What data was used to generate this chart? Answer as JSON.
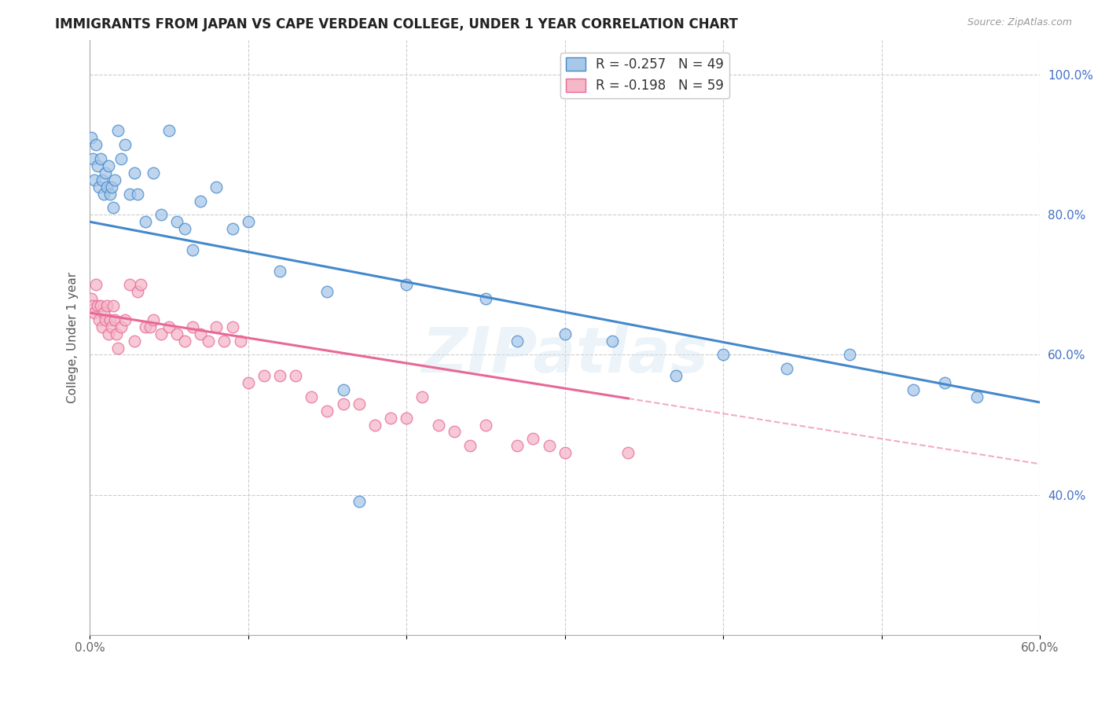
{
  "title": "IMMIGRANTS FROM JAPAN VS CAPE VERDEAN COLLEGE, UNDER 1 YEAR CORRELATION CHART",
  "source": "Source: ZipAtlas.com",
  "ylabel": "College, Under 1 year",
  "xlim": [
    0.0,
    0.6
  ],
  "ylim": [
    0.2,
    1.05
  ],
  "x_ticks": [
    0.0,
    0.1,
    0.2,
    0.3,
    0.4,
    0.5,
    0.6
  ],
  "x_tick_labels": [
    "0.0%",
    "",
    "",
    "",
    "",
    "",
    "60.0%"
  ],
  "y_ticks_right": [
    0.4,
    0.6,
    0.8,
    1.0
  ],
  "y_tick_labels_right": [
    "40.0%",
    "60.0%",
    "80.0%",
    "100.0%"
  ],
  "legend_label1": "R = -0.257   N = 49",
  "legend_label2": "R = -0.198   N = 59",
  "color_blue": "#a8c8e8",
  "color_pink": "#f4b8c8",
  "line_color_blue": "#4488cc",
  "line_color_pink": "#e86898",
  "blue_intercept": 0.79,
  "blue_slope": -0.43,
  "pink_intercept": 0.66,
  "pink_slope": -0.36,
  "pink_line_solid_end": 0.34,
  "blue_x": [
    0.001,
    0.002,
    0.003,
    0.004,
    0.005,
    0.006,
    0.007,
    0.008,
    0.009,
    0.01,
    0.011,
    0.012,
    0.013,
    0.014,
    0.015,
    0.016,
    0.018,
    0.02,
    0.022,
    0.025,
    0.028,
    0.03,
    0.035,
    0.04,
    0.045,
    0.05,
    0.055,
    0.06,
    0.065,
    0.07,
    0.08,
    0.09,
    0.1,
    0.12,
    0.15,
    0.16,
    0.17,
    0.2,
    0.25,
    0.27,
    0.3,
    0.33,
    0.37,
    0.4,
    0.44,
    0.48,
    0.52,
    0.54,
    0.56
  ],
  "blue_y": [
    0.91,
    0.88,
    0.85,
    0.9,
    0.87,
    0.84,
    0.88,
    0.85,
    0.83,
    0.86,
    0.84,
    0.87,
    0.83,
    0.84,
    0.81,
    0.85,
    0.92,
    0.88,
    0.9,
    0.83,
    0.86,
    0.83,
    0.79,
    0.86,
    0.8,
    0.92,
    0.79,
    0.78,
    0.75,
    0.82,
    0.84,
    0.78,
    0.79,
    0.72,
    0.69,
    0.55,
    0.39,
    0.7,
    0.68,
    0.62,
    0.63,
    0.62,
    0.57,
    0.6,
    0.58,
    0.6,
    0.55,
    0.56,
    0.54
  ],
  "pink_x": [
    0.001,
    0.002,
    0.003,
    0.004,
    0.005,
    0.006,
    0.007,
    0.008,
    0.009,
    0.01,
    0.011,
    0.012,
    0.013,
    0.014,
    0.015,
    0.016,
    0.017,
    0.018,
    0.02,
    0.022,
    0.025,
    0.028,
    0.03,
    0.032,
    0.035,
    0.038,
    0.04,
    0.045,
    0.05,
    0.055,
    0.06,
    0.065,
    0.07,
    0.075,
    0.08,
    0.085,
    0.09,
    0.095,
    0.1,
    0.11,
    0.12,
    0.13,
    0.14,
    0.15,
    0.16,
    0.17,
    0.18,
    0.19,
    0.2,
    0.21,
    0.22,
    0.23,
    0.24,
    0.25,
    0.27,
    0.28,
    0.29,
    0.3,
    0.34
  ],
  "pink_y": [
    0.68,
    0.67,
    0.66,
    0.7,
    0.67,
    0.65,
    0.67,
    0.64,
    0.66,
    0.65,
    0.67,
    0.63,
    0.65,
    0.64,
    0.67,
    0.65,
    0.63,
    0.61,
    0.64,
    0.65,
    0.7,
    0.62,
    0.69,
    0.7,
    0.64,
    0.64,
    0.65,
    0.63,
    0.64,
    0.63,
    0.62,
    0.64,
    0.63,
    0.62,
    0.64,
    0.62,
    0.64,
    0.62,
    0.56,
    0.57,
    0.57,
    0.57,
    0.54,
    0.52,
    0.53,
    0.53,
    0.5,
    0.51,
    0.51,
    0.54,
    0.5,
    0.49,
    0.47,
    0.5,
    0.47,
    0.48,
    0.47,
    0.46,
    0.46
  ],
  "watermark": "ZIPatlas",
  "background_color": "#ffffff",
  "grid_color": "#cccccc"
}
